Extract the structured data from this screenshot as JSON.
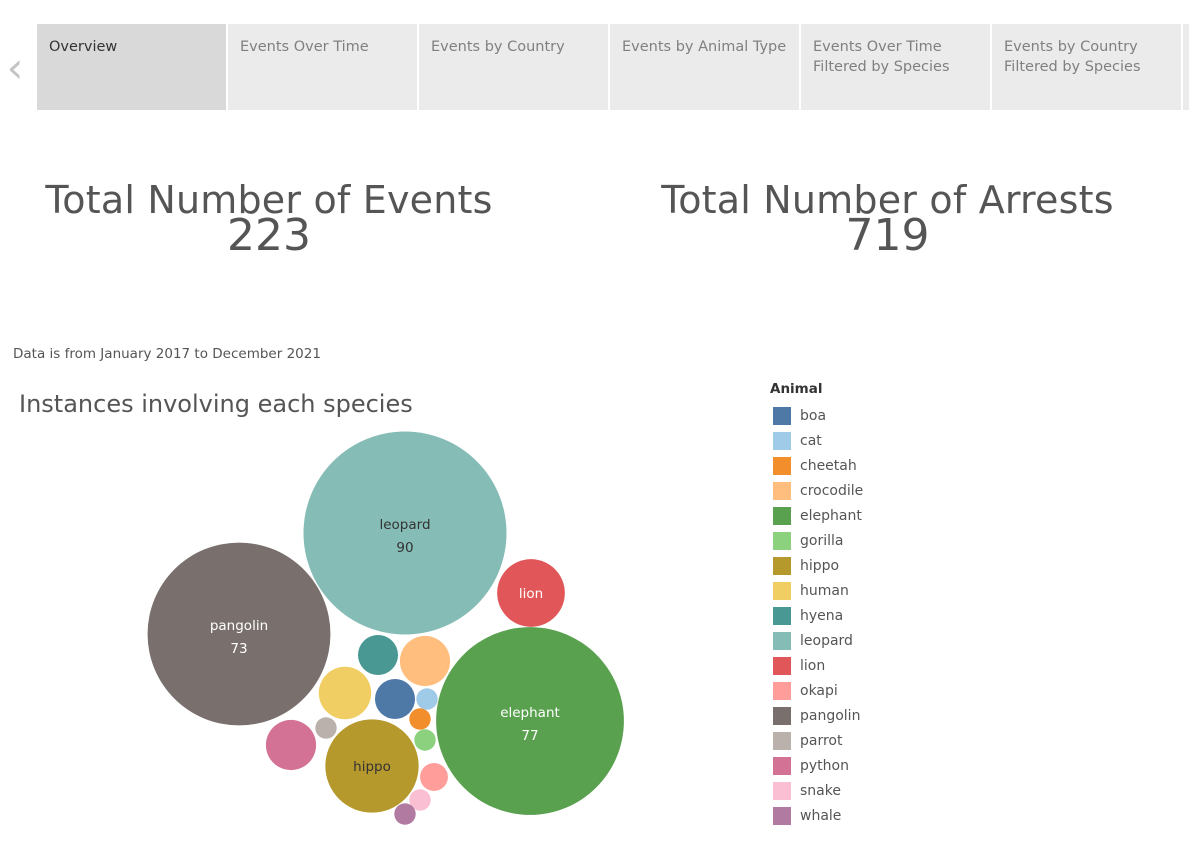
{
  "nav": {
    "prev_arrow": "‹"
  },
  "tabs": [
    {
      "label": "Overview",
      "active": true
    },
    {
      "label": "Events Over Time",
      "active": false
    },
    {
      "label": "Events by Country",
      "active": false
    },
    {
      "label": "Events by Animal Type",
      "active": false
    },
    {
      "label": "Events Over Time\nFiltered by Species",
      "active": false
    },
    {
      "label": "Events by Country\nFiltered by Species",
      "active": false
    }
  ],
  "kpis": {
    "events": {
      "title": "Total Number of Events",
      "value": "223"
    },
    "arrests": {
      "title": "Total Number of Arrests",
      "value": "719"
    }
  },
  "note": "Data is from January 2017 to December 2021",
  "chart_title": "Instances involving each species",
  "legend": {
    "title": "Animal",
    "items": [
      {
        "label": "boa",
        "color": "#4e79a7"
      },
      {
        "label": "cat",
        "color": "#a0cbe8"
      },
      {
        "label": "cheetah",
        "color": "#f28e2b"
      },
      {
        "label": "crocodile",
        "color": "#ffbe7d"
      },
      {
        "label": "elephant",
        "color": "#59a14f"
      },
      {
        "label": "gorilla",
        "color": "#8cd17d"
      },
      {
        "label": "hippo",
        "color": "#b6992d"
      },
      {
        "label": "human",
        "color": "#f1ce63"
      },
      {
        "label": "hyena",
        "color": "#499894"
      },
      {
        "label": "leopard",
        "color": "#86bcb6"
      },
      {
        "label": "lion",
        "color": "#e15759"
      },
      {
        "label": "okapi",
        "color": "#ff9d9a"
      },
      {
        "label": "pangolin",
        "color": "#79706e"
      },
      {
        "label": "parrot",
        "color": "#bab0ac"
      },
      {
        "label": "python",
        "color": "#d37295"
      },
      {
        "label": "snake",
        "color": "#fabfd2"
      },
      {
        "label": "whale",
        "color": "#b07aa1"
      }
    ]
  },
  "chart_data": {
    "type": "packed-bubble",
    "title": "Instances involving each species",
    "bubbles": [
      {
        "animal": "leopard",
        "value": 90,
        "label": "leopard",
        "value_label": "90",
        "color": "#86bcb6"
      },
      {
        "animal": "elephant",
        "value": 77,
        "label": "elephant",
        "value_label": "77",
        "color": "#59a14f"
      },
      {
        "animal": "pangolin",
        "value": 73,
        "label": "pangolin",
        "value_label": "73",
        "color": "#79706e"
      },
      {
        "animal": "hippo",
        "value": 19,
        "label": "hippo",
        "value_label": "",
        "color": "#b6992d"
      },
      {
        "animal": "lion",
        "value": 10,
        "label": "lion",
        "value_label": "",
        "color": "#e15759"
      },
      {
        "animal": "human",
        "value": 6,
        "label": "",
        "value_label": "",
        "color": "#f1ce63"
      },
      {
        "animal": "crocodile",
        "value": 5.5,
        "label": "",
        "value_label": "",
        "color": "#ffbe7d"
      },
      {
        "animal": "python",
        "value": 5.5,
        "label": "",
        "value_label": "",
        "color": "#d37295"
      },
      {
        "animal": "hyena",
        "value": 3.5,
        "label": "",
        "value_label": "",
        "color": "#499894"
      },
      {
        "animal": "boa",
        "value": 3.5,
        "label": "",
        "value_label": "",
        "color": "#4e79a7"
      },
      {
        "animal": "okapi",
        "value": 1.7,
        "label": "",
        "value_label": "",
        "color": "#ff9d9a"
      },
      {
        "animal": "cat",
        "value": 1,
        "label": "",
        "value_label": "",
        "color": "#a0cbe8"
      },
      {
        "animal": "cheetah",
        "value": 1,
        "label": "",
        "value_label": "",
        "color": "#f28e2b"
      },
      {
        "animal": "gorilla",
        "value": 1,
        "label": "",
        "value_label": "",
        "color": "#8cd17d"
      },
      {
        "animal": "snake",
        "value": 1,
        "label": "",
        "value_label": "",
        "color": "#fabfd2"
      },
      {
        "animal": "parrot",
        "value": 1,
        "label": "",
        "value_label": "",
        "color": "#bab0ac"
      },
      {
        "animal": "whale",
        "value": 1,
        "label": "",
        "value_label": "",
        "color": "#b07aa1"
      }
    ]
  }
}
